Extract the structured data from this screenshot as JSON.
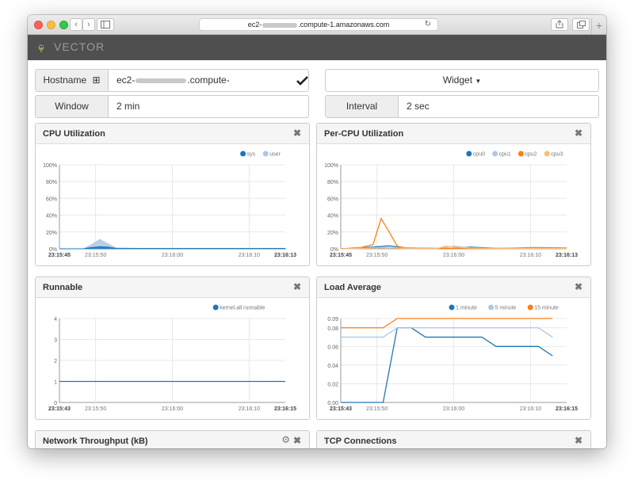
{
  "browser": {
    "url_prefix": "ec2-",
    "url_suffix": ".compute-1.amazonaws.com",
    "new_tab": "+"
  },
  "app": {
    "brand": "VECTOR"
  },
  "controls": {
    "hostname_label": "Hostname",
    "hostname_prefix": "ec2-",
    "hostname_suffix": ".compute-1.amazonaws.com",
    "widget_label": "Widget",
    "window_label": "Window",
    "window_value": "2 min",
    "interval_label": "Interval",
    "interval_value": "2 sec"
  },
  "panels": {
    "cpu": {
      "title": "CPU Utilization"
    },
    "percpu": {
      "title": "Per-CPU Utilization"
    },
    "runnable": {
      "title": "Runnable"
    },
    "load": {
      "title": "Load Average"
    },
    "network": {
      "title": "Network Throughput (kB)"
    },
    "tcp": {
      "title": "TCP Connections"
    }
  },
  "chart_data": [
    {
      "id": "cpu",
      "type": "area",
      "x_ticks": [
        "23:15:45",
        "23:15:50",
        "23:16:00",
        "23:16:10",
        "23:16:13"
      ],
      "y_ticks": [
        "0%",
        "20%",
        "40%",
        "60%",
        "80%",
        "100%"
      ],
      "ylim": [
        0,
        100
      ],
      "x_range": [
        0,
        28
      ],
      "legend_position": "top-right",
      "series": [
        {
          "name": "sys",
          "color": "#1f77b4",
          "x": [
            0,
            3,
            4,
            5,
            6,
            7,
            10,
            28
          ],
          "values": [
            0,
            0,
            1.5,
            2.5,
            2,
            0.5,
            0.3,
            0.3
          ]
        },
        {
          "name": "user",
          "color": "#aec7e8",
          "x": [
            0,
            3,
            4,
            5,
            6,
            7,
            10,
            28
          ],
          "values": [
            0,
            0,
            5,
            11,
            6,
            1,
            0.5,
            0.5
          ]
        }
      ]
    },
    {
      "id": "percpu",
      "type": "line",
      "x_ticks": [
        "23:15:45",
        "23:15:50",
        "23:16:00",
        "23:16:10",
        "23:16:13"
      ],
      "y_ticks": [
        "0%",
        "20%",
        "40%",
        "60%",
        "80%",
        "100%"
      ],
      "ylim": [
        0,
        100
      ],
      "x_range": [
        0,
        28
      ],
      "legend_position": "top-right",
      "series": [
        {
          "name": "cpu0",
          "color": "#1f77b4",
          "x": [
            0,
            2,
            4,
            6,
            8,
            12,
            14,
            16,
            20,
            28
          ],
          "values": [
            0,
            1,
            2,
            3.5,
            1,
            0.5,
            0.5,
            2,
            0.5,
            0.5
          ]
        },
        {
          "name": "cpu1",
          "color": "#aec7e8",
          "x": [
            0,
            2,
            4,
            6,
            8,
            12,
            14,
            16,
            20,
            28
          ],
          "values": [
            0,
            0.5,
            1,
            1.5,
            0.5,
            0.5,
            3,
            1,
            0.5,
            0.5
          ]
        },
        {
          "name": "cpu2",
          "color": "#ff7f0e",
          "x": [
            0,
            2,
            4,
            5,
            6,
            7,
            8,
            12,
            16,
            20,
            24,
            28
          ],
          "values": [
            0,
            0.5,
            5,
            36,
            20,
            3,
            1,
            0.5,
            0.5,
            0.5,
            1.5,
            1
          ]
        },
        {
          "name": "cpu3",
          "color": "#ffbb78",
          "x": [
            0,
            2,
            4,
            6,
            8,
            12,
            13,
            14,
            16,
            20,
            28
          ],
          "values": [
            0,
            0.5,
            1,
            1.5,
            0.5,
            0.5,
            3,
            2,
            1,
            0.5,
            0.5
          ]
        }
      ]
    },
    {
      "id": "runnable",
      "type": "line",
      "x_ticks": [
        "23:15:43",
        "23:15:50",
        "23:16:00",
        "23:16:10",
        "23:16:15"
      ],
      "y_ticks": [
        "0",
        "1",
        "2",
        "3",
        "4"
      ],
      "ylim": [
        0,
        4
      ],
      "x_range": [
        0,
        32
      ],
      "legend_position": "top-right",
      "series": [
        {
          "name": "kernel.all runnable",
          "color": "#1f77b4",
          "x": [
            0,
            32
          ],
          "values": [
            1,
            1
          ]
        }
      ]
    },
    {
      "id": "load",
      "type": "line",
      "x_ticks": [
        "23:15:43",
        "23:15:50",
        "23:16:00",
        "23:16:10",
        "23:16:15"
      ],
      "y_ticks": [
        "0.00",
        "0.02",
        "0.04",
        "0.06",
        "0.08",
        "0.09"
      ],
      "ylim": [
        0,
        0.09
      ],
      "x_range": [
        0,
        32
      ],
      "legend_position": "top-right",
      "series": [
        {
          "name": "1 minute",
          "color": "#1f77b4",
          "x": [
            0,
            6,
            8,
            10,
            12,
            20,
            22,
            28,
            30
          ],
          "values": [
            0,
            0,
            0.08,
            0.08,
            0.07,
            0.07,
            0.06,
            0.06,
            0.05
          ]
        },
        {
          "name": "5 minute",
          "color": "#aec7e8",
          "x": [
            0,
            6,
            8,
            28,
            30
          ],
          "values": [
            0.07,
            0.07,
            0.08,
            0.08,
            0.07
          ]
        },
        {
          "name": "15 minute",
          "color": "#ff7f0e",
          "x": [
            0,
            6,
            8,
            30
          ],
          "values": [
            0.08,
            0.08,
            0.09,
            0.09
          ]
        }
      ]
    }
  ]
}
